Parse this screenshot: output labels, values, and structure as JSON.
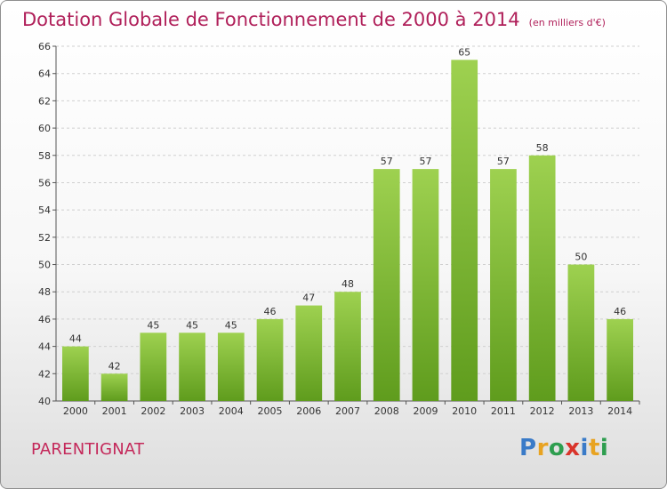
{
  "header": {
    "title": "Dotation Globale de Fonctionnement de 2000 à 2014",
    "subtitle": "(en milliers d'€)"
  },
  "footer": {
    "commune": "PARENTIGNAT",
    "brand": "Proxiti"
  },
  "colors": {
    "title": "#b0205a",
    "bar_top": "#9ed150",
    "bar_bottom": "#5f9c1d",
    "grid": "#d0d0d0"
  },
  "chart_data": {
    "type": "bar",
    "title": "Dotation Globale de Fonctionnement de 2000 à 2014",
    "subtitle": "(en milliers d'€)",
    "categories": [
      "2000",
      "2001",
      "2002",
      "2003",
      "2004",
      "2005",
      "2006",
      "2007",
      "2008",
      "2009",
      "2010",
      "2011",
      "2012",
      "2013",
      "2014"
    ],
    "values": [
      44,
      42,
      45,
      45,
      45,
      46,
      47,
      48,
      57,
      57,
      65,
      57,
      58,
      50,
      46
    ],
    "ylim": [
      40,
      66
    ],
    "yticks": [
      40,
      42,
      44,
      46,
      48,
      50,
      52,
      54,
      56,
      58,
      60,
      62,
      64,
      66
    ],
    "grid": true
  }
}
